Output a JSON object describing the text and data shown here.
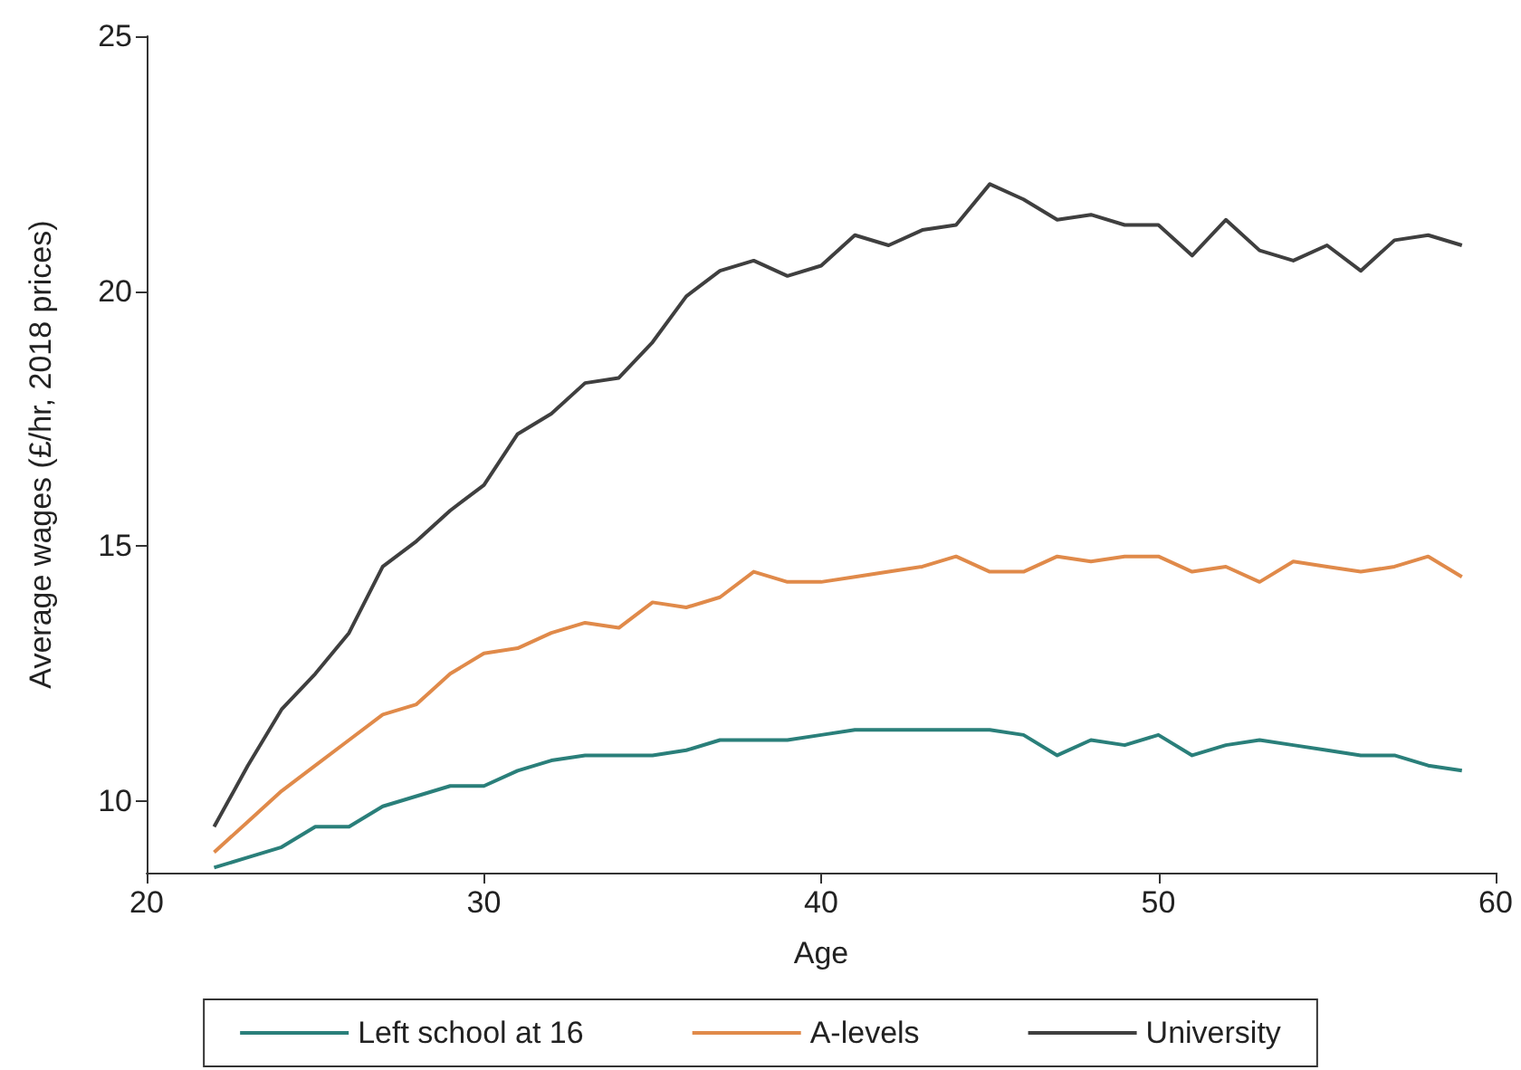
{
  "chart_data": {
    "type": "line",
    "xlabel": "Age",
    "ylabel": "Average wages (£/hr, 2018 prices)",
    "x": [
      22,
      23,
      24,
      25,
      26,
      27,
      28,
      29,
      30,
      31,
      32,
      33,
      34,
      35,
      36,
      37,
      38,
      39,
      40,
      41,
      42,
      43,
      44,
      45,
      46,
      47,
      48,
      49,
      50,
      51,
      52,
      53,
      54,
      55,
      56,
      57,
      58,
      59
    ],
    "series": [
      {
        "name": "Left school at 16",
        "color": "#2a7f7a",
        "values": [
          8.7,
          8.9,
          9.1,
          9.5,
          9.5,
          9.9,
          10.1,
          10.3,
          10.3,
          10.6,
          10.8,
          10.9,
          10.9,
          10.9,
          11.0,
          11.2,
          11.2,
          11.2,
          11.3,
          11.4,
          11.4,
          11.4,
          11.4,
          11.4,
          11.3,
          10.9,
          11.2,
          11.1,
          11.3,
          10.9,
          11.1,
          11.2,
          11.1,
          11.0,
          10.9,
          10.9,
          10.7,
          10.6
        ]
      },
      {
        "name": "A-levels",
        "color": "#e08a4a",
        "values": [
          9.0,
          9.6,
          10.2,
          10.7,
          11.2,
          11.7,
          11.9,
          12.5,
          12.9,
          13.0,
          13.3,
          13.5,
          13.4,
          13.9,
          13.8,
          14.0,
          14.5,
          14.3,
          14.3,
          14.4,
          14.5,
          14.6,
          14.8,
          14.5,
          14.5,
          14.8,
          14.7,
          14.8,
          14.8,
          14.5,
          14.6,
          14.3,
          14.7,
          14.6,
          14.5,
          14.6,
          14.8,
          14.4
        ]
      },
      {
        "name": "University",
        "color": "#3f3f3f",
        "values": [
          9.5,
          10.7,
          11.8,
          12.5,
          13.3,
          14.6,
          15.1,
          15.7,
          16.2,
          17.2,
          17.6,
          18.2,
          18.3,
          19.0,
          19.9,
          20.4,
          20.6,
          20.3,
          20.5,
          21.1,
          20.9,
          21.2,
          21.3,
          22.1,
          21.8,
          21.4,
          21.5,
          21.3,
          21.3,
          20.7,
          21.4,
          20.8,
          20.6,
          20.9,
          20.4,
          21.0,
          21.1,
          20.9
        ]
      }
    ],
    "xlim": [
      20,
      60
    ],
    "xticks": [
      20,
      30,
      40,
      50,
      60
    ],
    "ylim": [
      8.6,
      25
    ],
    "yticks": [
      10,
      15,
      20,
      25
    ],
    "grid": false,
    "legend": "bottom",
    "marker": "none",
    "line_style": "solid"
  }
}
